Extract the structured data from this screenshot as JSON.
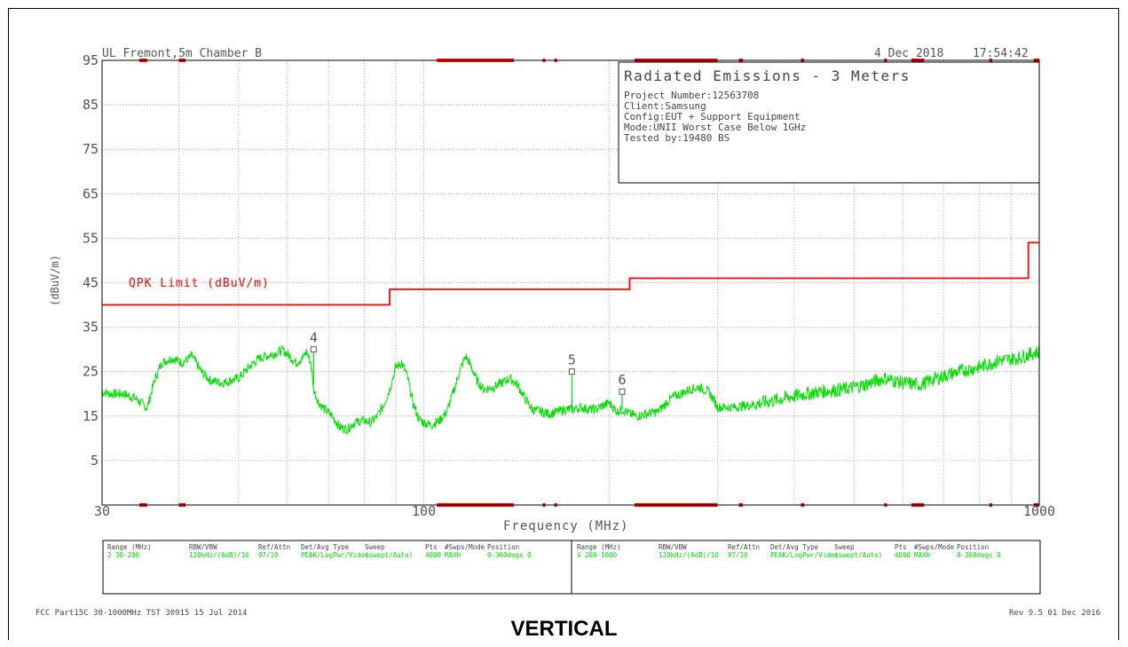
{
  "header": {
    "site": "UL Fremont,5m Chamber B",
    "date": "4 Dec 2018",
    "time": "17:54:42"
  },
  "info_box": {
    "title": "Radiated Emissions - 3 Meters",
    "lines": [
      "Project Number:12563708",
      "Client:Samsung",
      "Config:EUT + Support Equipment",
      "Mode:UNII Worst Case Below 1GHz",
      "Tested by:19480 BS"
    ]
  },
  "settings_table": {
    "headers": [
      "Range (MHz)",
      "RBW/VBW",
      "Ref/Attn",
      "Det/Avg Type",
      "Sweep",
      "Pts",
      "#Swps/Mode",
      "Position"
    ],
    "rows": [
      [
        "2 30-200",
        "120kHz/(6dB)/10",
        "97/10",
        "PEAK/LogPwr/Video",
        "(swept/Auto)",
        "4000",
        "MAXH",
        "0-360degs 0"
      ],
      [
        "4 200-1000",
        "120kHz/(6dB)/10",
        "97/10",
        "PEAK/LogPwr/Video",
        "(swept/Auto)",
        "4000",
        "MAXH",
        "0-360degs 0"
      ]
    ]
  },
  "footer": {
    "left": "FCC Part15C 30-1000MHz TST 30915 15 Jul 2014",
    "right": "Rev 9.5 01 Dec 2016"
  },
  "caption": "VERTICAL",
  "colors": {
    "limit": "#ff0000",
    "trace": "#00e000",
    "grid": "#999999",
    "frame": "#000000"
  },
  "chart_data": {
    "type": "line",
    "xlabel": "Frequency (MHz)",
    "ylabel": "(dBuV/m)",
    "xscale": "log",
    "xlim": [
      30,
      1000
    ],
    "ylim": [
      -5,
      95
    ],
    "x_tick_labels": [
      "30",
      "100",
      "1000"
    ],
    "y_ticks": [
      95,
      85,
      75,
      65,
      55,
      45,
      35,
      25,
      15,
      5
    ],
    "grid": true,
    "series": [
      {
        "name": "QPK Limit (dBuV/m)",
        "color": "#ff0000",
        "step": true,
        "points": [
          [
            30,
            40
          ],
          [
            88,
            40
          ],
          [
            88,
            43.5
          ],
          [
            216,
            43.5
          ],
          [
            216,
            46
          ],
          [
            960,
            46
          ],
          [
            960,
            54
          ],
          [
            1000,
            54
          ]
        ]
      },
      {
        "color": "#00e000",
        "noise": true,
        "points": [
          [
            30,
            20.5
          ],
          [
            31,
            20
          ],
          [
            32.5,
            20
          ],
          [
            34,
            19
          ],
          [
            35.5,
            16.8
          ],
          [
            36.5,
            23
          ],
          [
            37.5,
            27
          ],
          [
            39,
            28
          ],
          [
            40.5,
            27
          ],
          [
            42,
            28.5
          ],
          [
            43.5,
            25
          ],
          [
            45,
            23
          ],
          [
            47,
            22.5
          ],
          [
            50,
            23.5
          ],
          [
            52,
            26
          ],
          [
            54,
            28
          ],
          [
            57,
            29
          ],
          [
            59,
            29.8
          ],
          [
            60.5,
            28.5
          ],
          [
            62,
            27
          ],
          [
            63.5,
            28
          ],
          [
            64.5,
            29.5
          ],
          [
            65.5,
            27
          ],
          [
            66.2,
            21
          ],
          [
            67.5,
            18
          ],
          [
            69,
            16.5
          ],
          [
            71,
            15
          ],
          [
            73,
            12.5
          ],
          [
            75,
            12
          ],
          [
            77,
            13.5
          ],
          [
            80,
            14
          ],
          [
            82,
            13.5
          ],
          [
            84,
            15
          ],
          [
            86,
            17.5
          ],
          [
            88,
            21
          ],
          [
            90,
            26
          ],
          [
            92,
            27
          ],
          [
            94,
            24
          ],
          [
            96,
            18
          ],
          [
            98,
            14.5
          ],
          [
            100,
            13.5
          ],
          [
            103,
            13
          ],
          [
            106,
            14
          ],
          [
            109,
            16
          ],
          [
            112,
            21
          ],
          [
            115,
            26
          ],
          [
            117,
            28.5
          ],
          [
            119,
            26.5
          ],
          [
            122,
            23
          ],
          [
            125,
            21
          ],
          [
            130,
            21.5
          ],
          [
            134,
            22.5
          ],
          [
            138,
            23.5
          ],
          [
            142,
            22
          ],
          [
            146,
            19
          ],
          [
            150,
            16.5
          ],
          [
            155,
            16
          ],
          [
            160,
            15.5
          ],
          [
            165,
            16
          ],
          [
            170,
            16.5
          ],
          [
            175,
            16.5
          ],
          [
            180,
            17
          ],
          [
            185,
            16.5
          ],
          [
            190,
            16.5
          ],
          [
            200,
            18
          ],
          [
            206,
            16
          ],
          [
            210,
            16.5
          ],
          [
            216,
            15.5
          ],
          [
            222,
            15
          ],
          [
            230,
            15.5
          ],
          [
            240,
            16
          ],
          [
            248,
            18
          ],
          [
            255,
            19.5
          ],
          [
            262,
            20
          ],
          [
            270,
            21
          ],
          [
            280,
            21.5
          ],
          [
            290,
            20.5
          ],
          [
            295,
            19
          ],
          [
            300,
            17
          ],
          [
            320,
            17
          ],
          [
            340,
            17.5
          ],
          [
            370,
            18.5
          ],
          [
            400,
            19.5
          ],
          [
            440,
            20.5
          ],
          [
            480,
            21
          ],
          [
            520,
            22
          ],
          [
            560,
            23.5
          ],
          [
            600,
            22.5
          ],
          [
            640,
            22
          ],
          [
            680,
            23.5
          ],
          [
            740,
            25
          ],
          [
            800,
            26
          ],
          [
            860,
            27.5
          ],
          [
            920,
            28
          ],
          [
            970,
            29
          ],
          [
            1000,
            29.5
          ]
        ]
      }
    ],
    "markers": [
      {
        "label": "4",
        "freq": 66.2,
        "level": 30
      },
      {
        "label": "5",
        "freq": 174,
        "level": 25
      },
      {
        "label": "6",
        "freq": 210,
        "level": 20.5
      }
    ]
  }
}
